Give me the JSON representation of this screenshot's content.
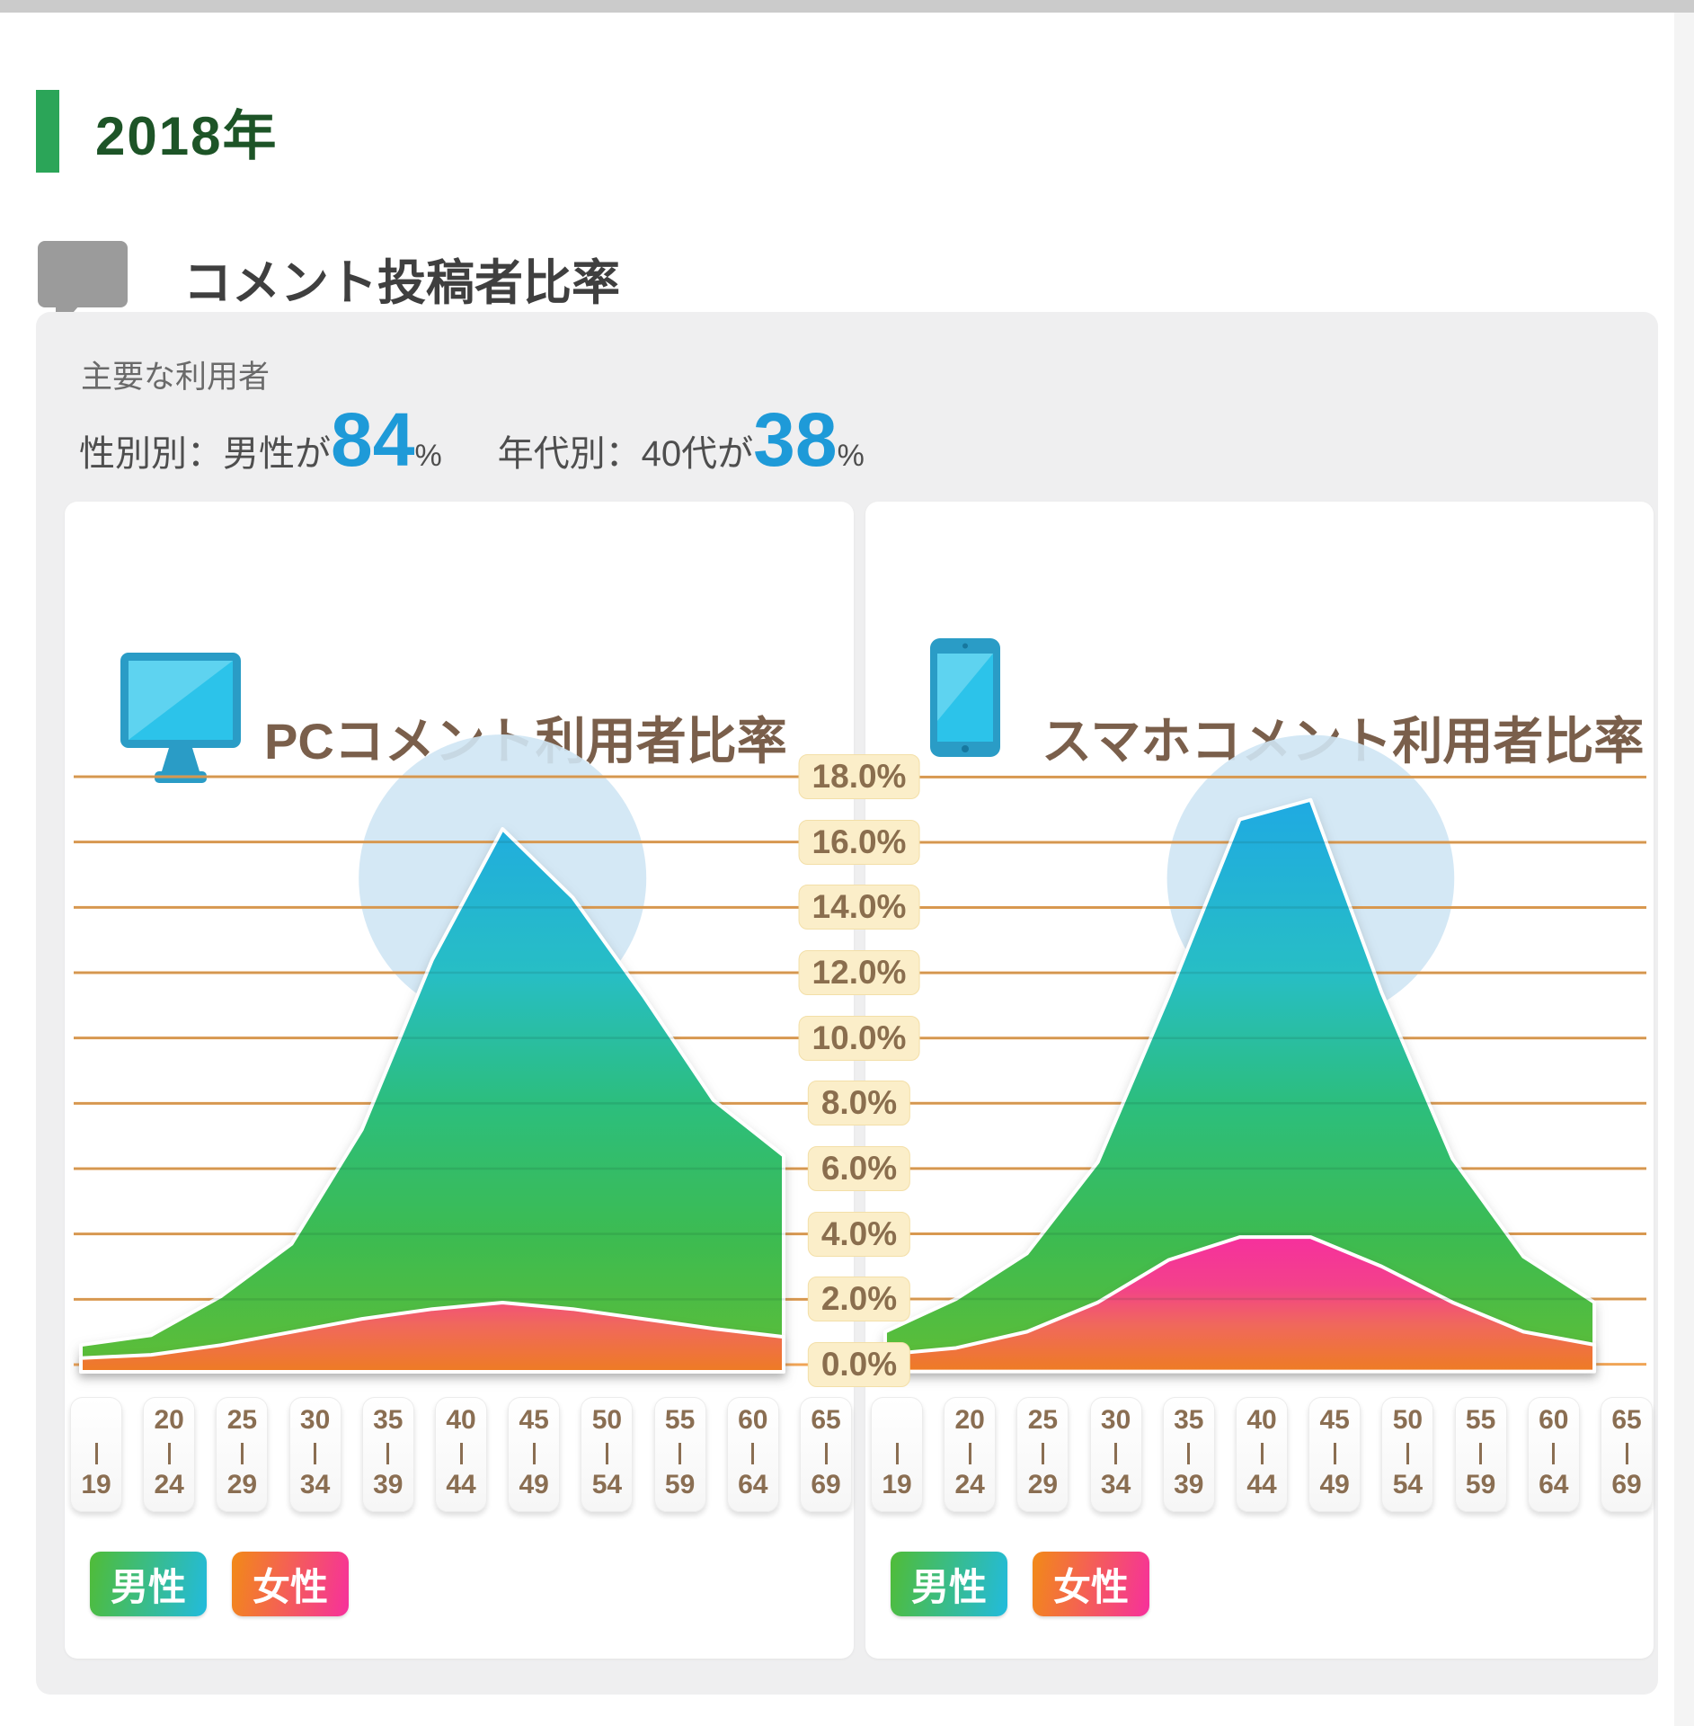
{
  "page": {
    "year_title": "2018年",
    "section_title": "コメント投稿者比率",
    "summary": {
      "label": "主要な利用者",
      "gender_prefix": "性別別：男性が",
      "gender_value": "84",
      "gender_unit": "%",
      "age_prefix": "年代別：40代が",
      "age_value": "38",
      "age_unit": "%"
    },
    "legend": {
      "male": "男性",
      "female": "女性"
    },
    "icons": [
      "speech-bubble-icon",
      "pc-monitor-icon",
      "smartphone-icon"
    ]
  },
  "colors": {
    "accent_green": "#2ba558",
    "year_title_green": "#1d5427",
    "stat_number_blue": "#1e9ad8",
    "chart_title_brown": "#7a5f4b",
    "gridline_orange": "#f0a456",
    "tick_pill_bg": "#fbeec9",
    "tick_text_brown": "#8a6e4e",
    "highlight_circle": "#cfe6f4",
    "male_gradient": [
      "#1ea7e6",
      "#27bec5",
      "#2cbe7d",
      "#3dbb50",
      "#5fbe36"
    ],
    "female_gradient": [
      "#f62f9e",
      "#f3418b",
      "#f0685c",
      "#ee7c23"
    ],
    "legend_male_gradient": [
      "#50bc37",
      "#22bbdd"
    ],
    "legend_female_gradient": [
      "#f28a17",
      "#f6309c"
    ]
  },
  "axis": {
    "y_ticks": [
      "18.0%",
      "16.0%",
      "14.0%",
      "12.0%",
      "10.0%",
      "8.0%",
      "6.0%",
      "4.0%",
      "2.0%",
      "0.0%"
    ],
    "ylim": [
      0,
      18
    ]
  },
  "chart_data": [
    {
      "type": "area",
      "title": "PCコメント利用者比率",
      "icon": "pc-monitor-icon",
      "categories": [
        {
          "from": "",
          "to": "19"
        },
        {
          "from": "20",
          "to": "24"
        },
        {
          "from": "25",
          "to": "29"
        },
        {
          "from": "30",
          "to": "34"
        },
        {
          "from": "35",
          "to": "39"
        },
        {
          "from": "40",
          "to": "44"
        },
        {
          "from": "45",
          "to": "49"
        },
        {
          "from": "50",
          "to": "54"
        },
        {
          "from": "55",
          "to": "59"
        },
        {
          "from": "60",
          "to": "64"
        },
        {
          "from": "65",
          "to": "69"
        }
      ],
      "ylim": [
        0,
        18
      ],
      "grid": true,
      "legend_position": "bottom-left",
      "series": [
        {
          "name": "男性",
          "values": [
            0.6,
            0.9,
            2.1,
            3.7,
            7.2,
            12.4,
            16.4,
            14.3,
            11.3,
            8.1,
            6.4
          ]
        },
        {
          "name": "女性",
          "values": [
            0.2,
            0.3,
            0.6,
            1.0,
            1.4,
            1.7,
            1.9,
            1.7,
            1.4,
            1.1,
            0.85
          ]
        }
      ]
    },
    {
      "type": "area",
      "title": "スマホコメント利用者比率",
      "icon": "smartphone-icon",
      "categories": [
        {
          "from": "",
          "to": "19"
        },
        {
          "from": "20",
          "to": "24"
        },
        {
          "from": "25",
          "to": "29"
        },
        {
          "from": "30",
          "to": "34"
        },
        {
          "from": "35",
          "to": "39"
        },
        {
          "from": "40",
          "to": "44"
        },
        {
          "from": "45",
          "to": "49"
        },
        {
          "from": "50",
          "to": "54"
        },
        {
          "from": "55",
          "to": "59"
        },
        {
          "from": "60",
          "to": "64"
        },
        {
          "from": "65",
          "to": "69"
        }
      ],
      "ylim": [
        0,
        18
      ],
      "grid": true,
      "legend_position": "bottom-left",
      "series": [
        {
          "name": "男性",
          "values": [
            1.0,
            2.0,
            3.4,
            6.2,
            11.3,
            16.7,
            17.3,
            11.4,
            6.3,
            3.3,
            1.9
          ]
        },
        {
          "name": "女性",
          "values": [
            0.3,
            0.5,
            1.0,
            1.9,
            3.2,
            3.9,
            3.9,
            3.0,
            1.9,
            1.0,
            0.6
          ]
        }
      ]
    }
  ]
}
